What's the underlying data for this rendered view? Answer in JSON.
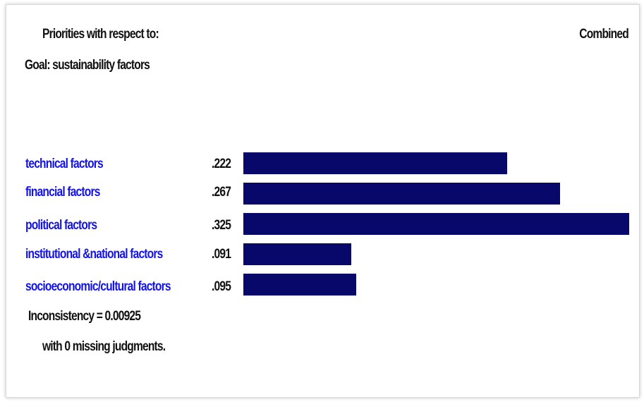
{
  "header": {
    "priorities_label": "Priorities with respect to:",
    "goal_label": "Goal: sustainability factors",
    "mode_label": "Combined"
  },
  "colors": {
    "bar": "#08086b",
    "link": "#1414e6",
    "text": "#111111"
  },
  "factors": [
    {
      "label": "technical factors",
      "value_text": ".222",
      "value": 0.222
    },
    {
      "label": "financial factors",
      "value_text": ".267",
      "value": 0.267
    },
    {
      "label": "political factors",
      "value_text": ".325",
      "value": 0.325
    },
    {
      "label": "institutional &national factors",
      "value_text": ".091",
      "value": 0.091
    },
    {
      "label": "socioeconomic/cultural factors",
      "value_text": ".095",
      "value": 0.095
    }
  ],
  "footer": {
    "inconsistency": "Inconsistency = 0.00925",
    "missing": "with 0  missing judgments."
  }
}
